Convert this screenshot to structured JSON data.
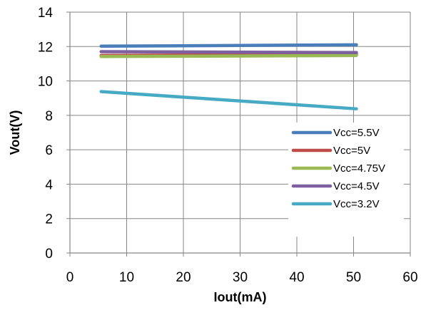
{
  "chart_data": {
    "type": "line",
    "title": "",
    "xlabel": "Iout(mA)",
    "ylabel": "Vout(V)",
    "xlim": [
      0,
      60
    ],
    "ylim": [
      0,
      14
    ],
    "xticks": [
      0,
      10,
      20,
      30,
      40,
      50,
      60
    ],
    "yticks": [
      0,
      2,
      4,
      6,
      8,
      10,
      12,
      14
    ],
    "grid": true,
    "legend_position": "lower-right",
    "series": [
      {
        "name": "Vcc=5.5V",
        "color": "#4a7ebb",
        "x": [
          5.5,
          50.5
        ],
        "y": [
          12.02,
          12.1
        ]
      },
      {
        "name": "Vcc=5V",
        "color": "#be4b48",
        "x": [
          5.5,
          50.5
        ],
        "y": [
          11.48,
          11.55
        ]
      },
      {
        "name": "Vcc=4.75V",
        "color": "#98b954",
        "x": [
          5.5,
          50.5
        ],
        "y": [
          11.42,
          11.48
        ]
      },
      {
        "name": "Vcc=4.5V",
        "color": "#7d60a0",
        "x": [
          5.5,
          50.5
        ],
        "y": [
          11.7,
          11.65
        ]
      },
      {
        "name": "Vcc=3.2V",
        "color": "#46aac5",
        "x": [
          5.5,
          50.5
        ],
        "y": [
          9.38,
          8.38
        ]
      }
    ]
  }
}
